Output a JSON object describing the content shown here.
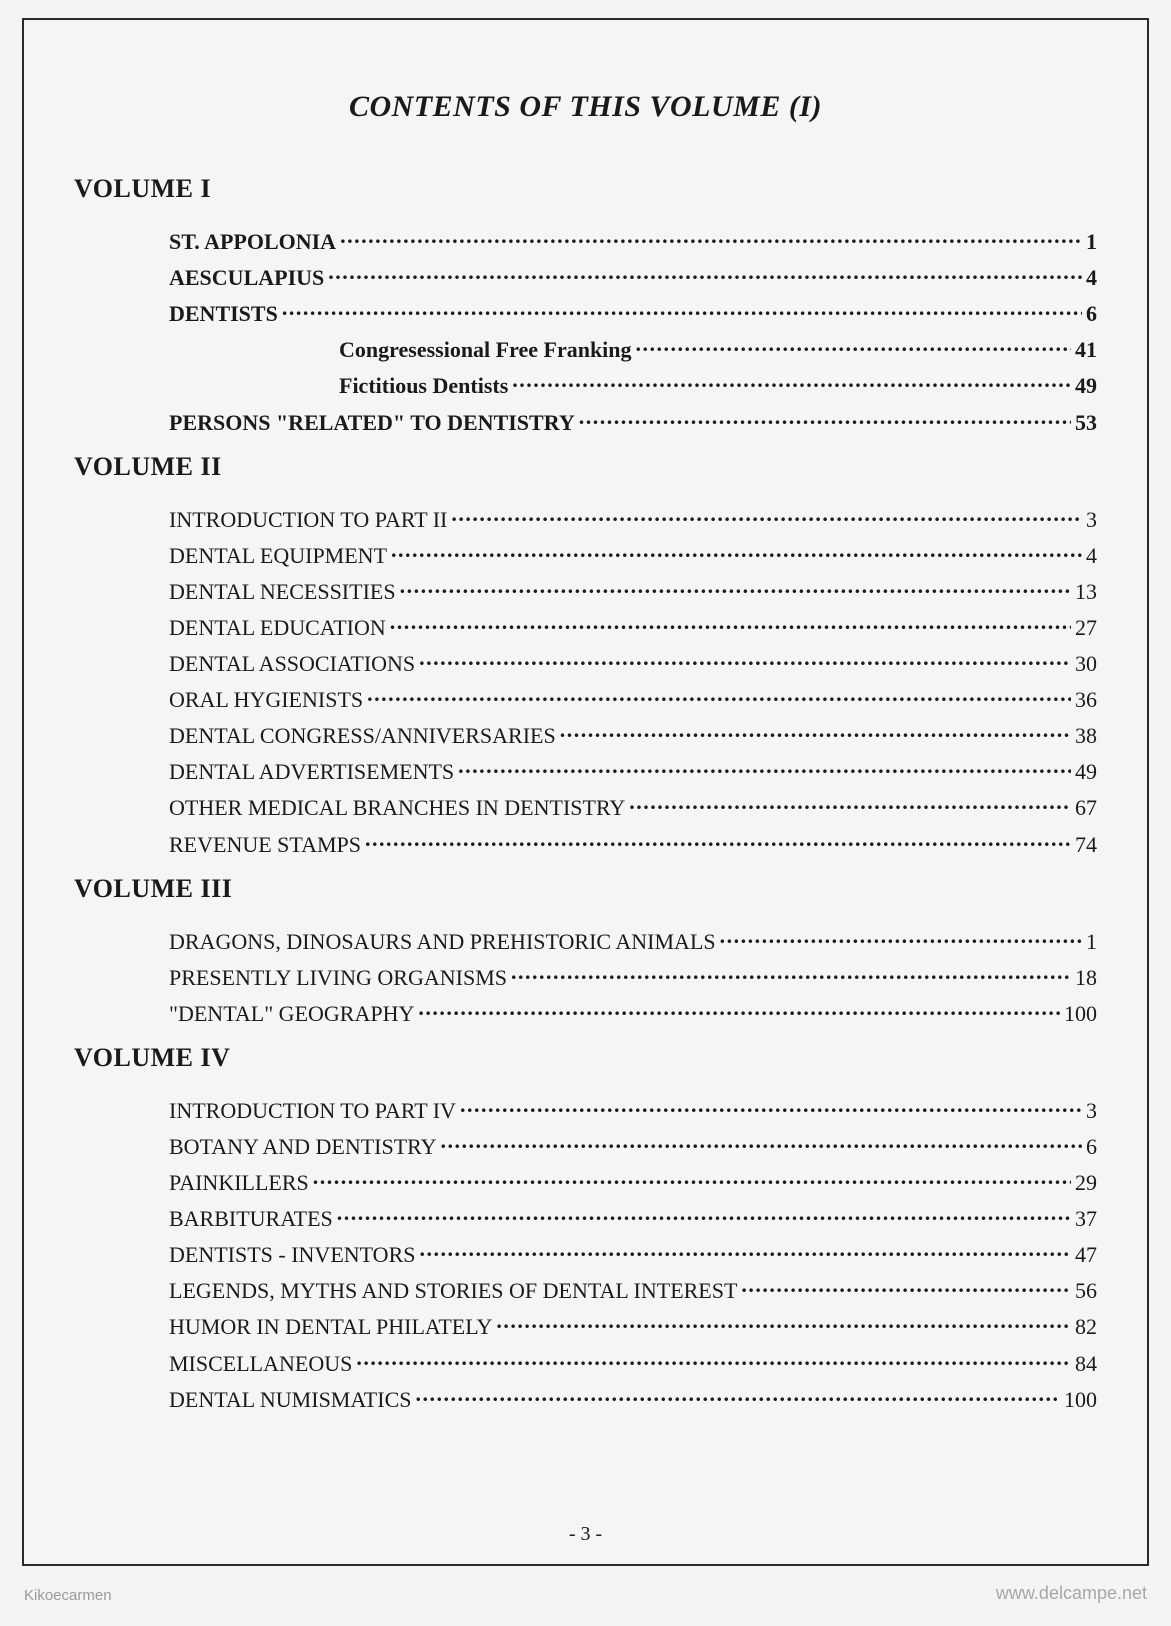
{
  "page": {
    "title": "CONTENTS OF THIS VOLUME  (I)",
    "page_number": "- 3 -"
  },
  "watermarks": {
    "left": "Kikoecarmen",
    "right": "www.delcampe.net"
  },
  "volumes": [
    {
      "header": "VOLUME I",
      "entries": [
        {
          "label": "ST. APPOLONIA",
          "page": "1",
          "bold": true
        },
        {
          "label": "AESCULAPIUS",
          "page": "4",
          "bold": true
        },
        {
          "label": "DENTISTS",
          "page": "6",
          "bold": true
        },
        {
          "label": "Congresessional Free Franking",
          "page": "41",
          "sub": true
        },
        {
          "label": "Fictitious Dentists",
          "page": "49",
          "sub": true
        },
        {
          "label": "PERSONS \"RELATED\" TO DENTISTRY",
          "page": "53",
          "bold": true
        }
      ]
    },
    {
      "header": "VOLUME II",
      "entries": [
        {
          "label": "INTRODUCTION TO PART II",
          "page": "3"
        },
        {
          "label": "DENTAL EQUIPMENT",
          "page": "4"
        },
        {
          "label": "DENTAL NECESSITIES",
          "page": "13"
        },
        {
          "label": "DENTAL EDUCATION",
          "page": "27"
        },
        {
          "label": "DENTAL ASSOCIATIONS",
          "page": "30"
        },
        {
          "label": "ORAL HYGIENISTS",
          "page": "36"
        },
        {
          "label": "DENTAL CONGRESS/ANNIVERSARIES",
          "page": "38"
        },
        {
          "label": "DENTAL ADVERTISEMENTS",
          "page": "49"
        },
        {
          "label": "OTHER MEDICAL BRANCHES IN DENTISTRY",
          "page": "67"
        },
        {
          "label": "REVENUE STAMPS",
          "page": "74"
        }
      ]
    },
    {
      "header": "VOLUME III",
      "entries": [
        {
          "label": "DRAGONS, DINOSAURS AND PREHISTORIC ANIMALS",
          "page": "1"
        },
        {
          "label": "PRESENTLY LIVING ORGANISMS",
          "page": "18"
        },
        {
          "label": "\"DENTAL\" GEOGRAPHY",
          "page": "100"
        }
      ]
    },
    {
      "header": "VOLUME IV",
      "entries": [
        {
          "label": "INTRODUCTION TO PART IV",
          "page": "3"
        },
        {
          "label": "BOTANY AND DENTISTRY",
          "page": "6"
        },
        {
          "label": "PAINKILLERS",
          "page": "29"
        },
        {
          "label": "BARBITURATES",
          "page": "37"
        },
        {
          "label": "DENTISTS - INVENTORS",
          "page": "47"
        },
        {
          "label": "LEGENDS, MYTHS AND STORIES OF DENTAL INTEREST",
          "page": "56"
        },
        {
          "label": "HUMOR IN DENTAL PHILATELY",
          "page": "82"
        },
        {
          "label": "MISCELLANEOUS",
          "page": "84"
        },
        {
          "label": "DENTAL NUMISMATICS",
          "page": "100"
        }
      ]
    }
  ]
}
